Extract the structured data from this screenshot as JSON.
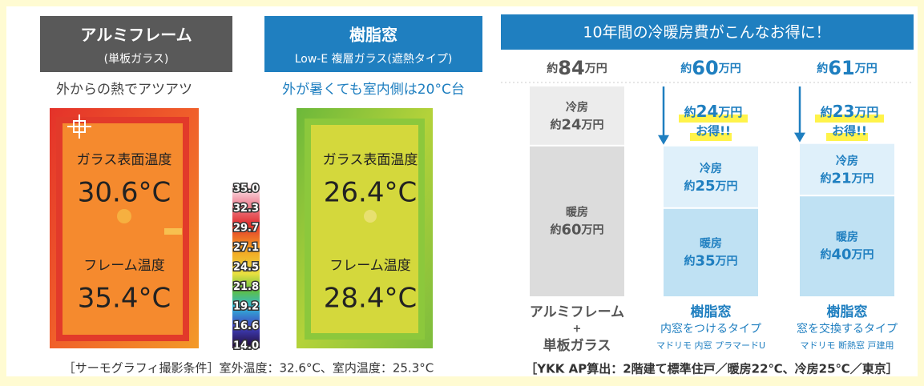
{
  "thermal": {
    "panels": [
      {
        "title": "アルミフレーム",
        "subtitle": "(単板ガラス)",
        "caption": "外からの熱でアツアツ",
        "glass_label": "ガラス表面温度",
        "glass_temp": "30.6°C",
        "frame_label": "フレーム温度",
        "frame_temp": "35.4°C"
      },
      {
        "title": "樹脂窓",
        "subtitle": "Low-E 複層ガラス(遮熱タイプ)",
        "caption": "外が暑くても室内側は20°C台",
        "glass_label": "ガラス表面温度",
        "glass_temp": "26.4°C",
        "frame_label": "フレーム温度",
        "frame_temp": "28.4°C"
      }
    ],
    "scale": [
      "35.0",
      "32.3",
      "29.7",
      "27.1",
      "24.5",
      "21.8",
      "19.2",
      "16.6",
      "14.0"
    ],
    "note": "［サーモグラフィ撮影条件］室外温度：32.6°C、室内温度：25.3°C"
  },
  "savings": {
    "title": "10年間の冷暖房費がこんなお得に！",
    "prefix": "約",
    "unit": "万円",
    "cooling_label": "冷房",
    "heating_label": "暖房",
    "saving_suffix": "お得!!",
    "columns": [
      {
        "total": 84,
        "cooling": 24,
        "heating": 60,
        "label_lines": [
          "アルミフレーム",
          "+",
          "単板ガラス"
        ]
      },
      {
        "total": 60,
        "cooling": 25,
        "heating": 35,
        "saving": 24,
        "label_lines": [
          "樹脂窓",
          "内窓をつけるタイプ",
          "マドリモ 内窓 プラマードU"
        ]
      },
      {
        "total": 61,
        "cooling": 21,
        "heating": 40,
        "saving": 23,
        "label_lines": [
          "樹脂窓",
          "窓を交換するタイプ",
          "マドリモ 断熱窓 戸建用"
        ]
      }
    ],
    "note": "［YKK AP算出：2階建て標準住戸／暖房22℃、冷房25℃／東京］"
  }
}
